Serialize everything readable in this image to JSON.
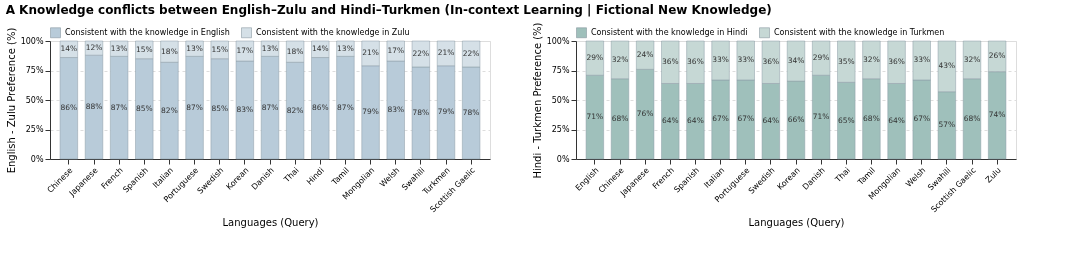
{
  "chart_data": [
    {
      "type": "bar",
      "title": "Knowledge conflicts between English–Zulu and Hindi–Turkmen (In-context Learning | Fictional New Knowledge)",
      "annotations": [
        "A"
      ],
      "stacked": true,
      "xlabel": "Languages (Query)",
      "ylabel": "English - Zulu Preference (%)",
      "categories": [
        "Chinese",
        "Japanese",
        "French",
        "Spanish",
        "Italian",
        "Portuguese",
        "Swedish",
        "Korean",
        "Danish",
        "Thai",
        "Hindi",
        "Tamil",
        "Mongolian",
        "Welsh",
        "Swahili",
        "Turkmen",
        "Scottish Gaelic"
      ],
      "series": [
        {
          "name": "Consistent with the knowledge in English",
          "color": "#b8cbd9",
          "values": [
            86,
            88,
            87,
            85,
            82,
            87,
            85,
            83,
            87,
            82,
            86,
            87,
            79,
            83,
            78,
            79,
            78
          ],
          "value_labels": [
            "86%",
            "88%",
            "87%",
            "85%",
            "82%",
            "87%",
            "85%",
            "83%",
            "87%",
            "82%",
            "86%",
            "87%",
            "79%",
            "83%",
            "78%",
            "79%",
            "78%"
          ]
        },
        {
          "name": "Consistent with the knowledge in Zulu",
          "color": "#d5e0e7",
          "values": [
            14,
            12,
            13,
            15,
            18,
            13,
            15,
            17,
            13,
            18,
            14,
            13,
            21,
            17,
            22,
            21,
            22
          ],
          "value_labels": [
            "14%",
            "12%",
            "13%",
            "15%",
            "18%",
            "13%",
            "15%",
            "17%",
            "13%",
            "18%",
            "14%",
            "13%",
            "21%",
            "17%",
            "22%",
            "21%",
            "22%"
          ]
        }
      ],
      "ylim": [
        0,
        100
      ],
      "yticks": [
        {
          "value": 0,
          "label": "0%"
        },
        {
          "value": 25,
          "label": "25%"
        },
        {
          "value": 50,
          "label": "50%"
        },
        {
          "value": 75,
          "label": "75%"
        },
        {
          "value": 100,
          "label": "100%"
        }
      ],
      "grid": "y",
      "legend": "top"
    },
    {
      "type": "bar",
      "stacked": true,
      "xlabel": "Languages (Query)",
      "ylabel": "Hindi - Turkmen Preference (%)",
      "categories": [
        "English",
        "Chinese",
        "Japanese",
        "French",
        "Spanish",
        "Italian",
        "Portuguese",
        "Swedish",
        "Korean",
        "Danish",
        "Thai",
        "Tamil",
        "Mongolian",
        "Welsh",
        "Swahili",
        "Scottish Gaelic",
        "Zulu"
      ],
      "series": [
        {
          "name": "Consistent with the knowledge in Hindi",
          "color": "#9fc0bb",
          "values": [
            71,
            68,
            76,
            64,
            64,
            67,
            67,
            64,
            66,
            71,
            65,
            68,
            64,
            67,
            57,
            68,
            74
          ],
          "value_labels": [
            "71%",
            "68%",
            "76%",
            "64%",
            "64%",
            "67%",
            "67%",
            "64%",
            "66%",
            "71%",
            "65%",
            "68%",
            "64%",
            "67%",
            "57%",
            "68%",
            "74%"
          ]
        },
        {
          "name": "Consistent with the knowledge in Turkmen",
          "color": "#c6d8d5",
          "values": [
            29,
            32,
            24,
            36,
            36,
            33,
            33,
            36,
            34,
            29,
            35,
            32,
            36,
            33,
            43,
            32,
            26
          ],
          "value_labels": [
            "29%",
            "32%",
            "24%",
            "36%",
            "36%",
            "33%",
            "33%",
            "36%",
            "34%",
            "29%",
            "35%",
            "32%",
            "36%",
            "33%",
            "43%",
            "32%",
            "26%"
          ]
        }
      ],
      "ylim": [
        0,
        100
      ],
      "yticks": [
        {
          "value": 0,
          "label": "0%"
        },
        {
          "value": 25,
          "label": "25%"
        },
        {
          "value": 50,
          "label": "50%"
        },
        {
          "value": 75,
          "label": "75%"
        },
        {
          "value": 100,
          "label": "100%"
        }
      ],
      "grid": "y",
      "legend": "top"
    }
  ]
}
